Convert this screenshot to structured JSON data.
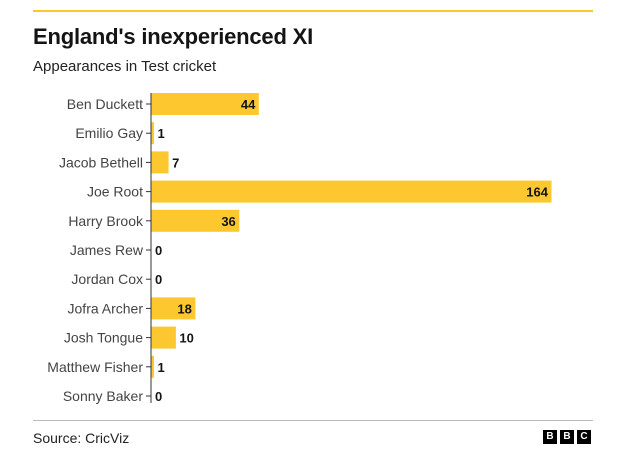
{
  "title": "England's inexperienced XI",
  "subtitle": "Appearances in Test cricket",
  "source": "Source: CricViz",
  "logo": [
    "B",
    "B",
    "C"
  ],
  "colors": {
    "bar": "#fdc82f",
    "rule": "#fdc82f"
  },
  "chart_data": {
    "type": "bar",
    "orientation": "horizontal",
    "categories": [
      "Ben Duckett",
      "Emilio Gay",
      "Jacob Bethell",
      "Joe Root",
      "Harry Brook",
      "James Rew",
      "Jordan Cox",
      "Jofra Archer",
      "Josh Tongue",
      "Matthew Fisher",
      "Sonny Baker"
    ],
    "values": [
      44,
      1,
      7,
      164,
      36,
      0,
      0,
      18,
      10,
      1,
      0
    ],
    "title": "England's inexperienced XI",
    "subtitle": "Appearances in Test cricket",
    "xlim": [
      0,
      164
    ],
    "grid": false,
    "data_labels": true
  }
}
